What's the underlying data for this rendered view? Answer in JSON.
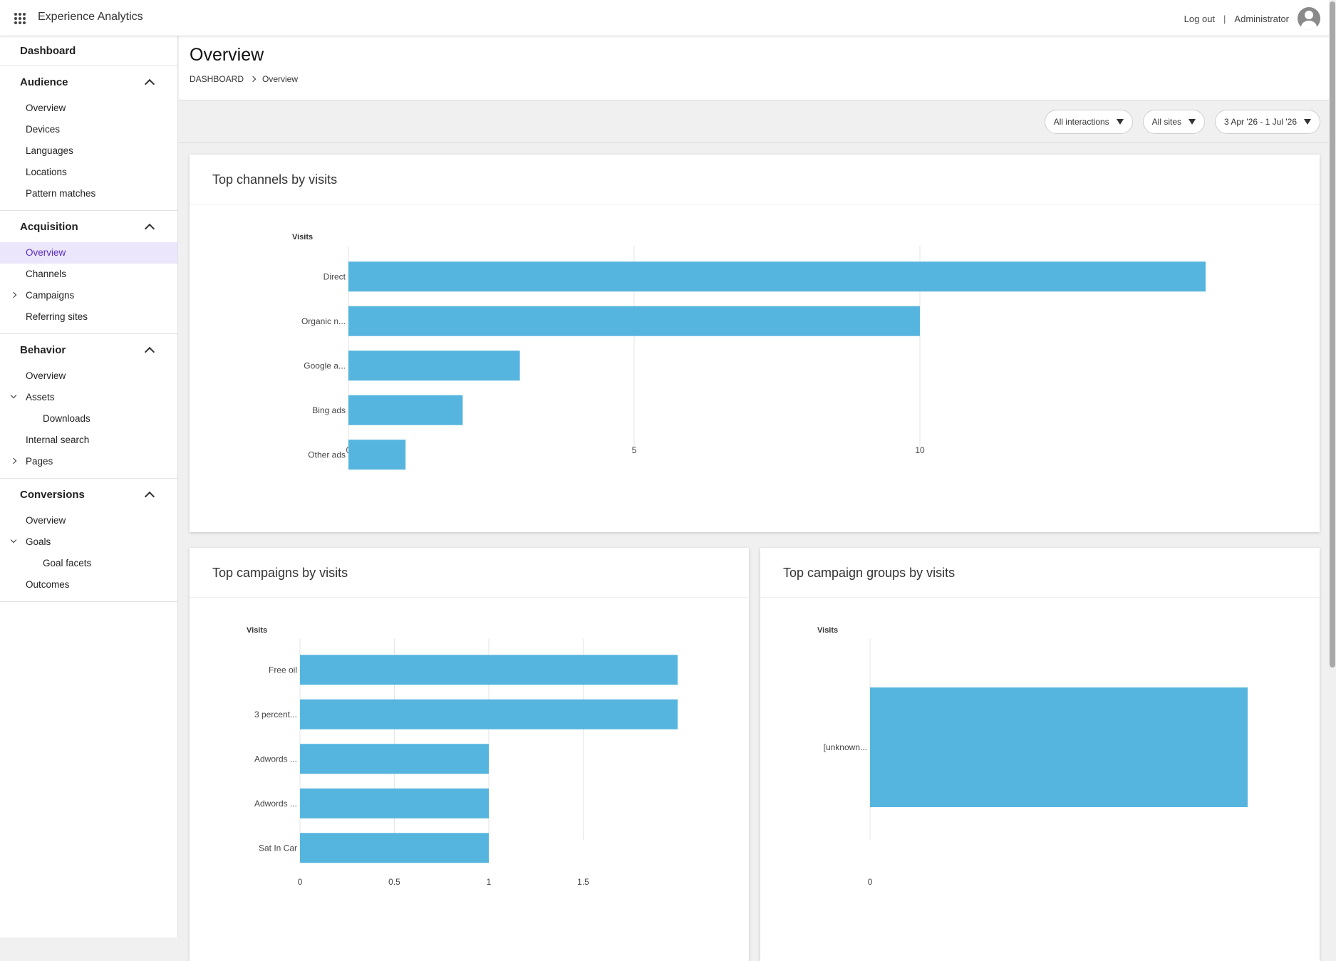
{
  "app": {
    "title": "Experience Analytics"
  },
  "header": {
    "logout": "Log out",
    "separator": "|",
    "user": "Administrator"
  },
  "sidebar": {
    "dashboard": "Dashboard",
    "groups": [
      {
        "label": "Audience",
        "items": [
          {
            "label": "Overview"
          },
          {
            "label": "Devices"
          },
          {
            "label": "Languages"
          },
          {
            "label": "Locations"
          },
          {
            "label": "Pattern matches"
          }
        ]
      },
      {
        "label": "Acquisition",
        "items": [
          {
            "label": "Overview",
            "active": true
          },
          {
            "label": "Channels"
          },
          {
            "label": "Campaigns",
            "chevron": "right"
          },
          {
            "label": "Referring sites"
          }
        ]
      },
      {
        "label": "Behavior",
        "items": [
          {
            "label": "Overview"
          },
          {
            "label": "Assets",
            "chevron": "down"
          },
          {
            "label": "Downloads",
            "sub": true
          },
          {
            "label": "Internal search"
          },
          {
            "label": "Pages",
            "chevron": "right"
          }
        ]
      },
      {
        "label": "Conversions",
        "items": [
          {
            "label": "Overview"
          },
          {
            "label": "Goals",
            "chevron": "down"
          },
          {
            "label": "Goal facets",
            "sub": true
          },
          {
            "label": "Outcomes"
          }
        ]
      }
    ]
  },
  "page": {
    "title": "Overview",
    "breadcrumb": [
      "DASHBOARD",
      "Overview"
    ]
  },
  "filters": [
    {
      "label": "All interactions"
    },
    {
      "label": "All sites"
    },
    {
      "label": "3 Apr '26 - 1 Jul '26"
    }
  ],
  "colors": {
    "bar": "#56b5de",
    "active_nav_bg": "#ebe6fb",
    "active_nav_text": "#5a2ec3"
  },
  "chart_data": [
    {
      "id": "channels",
      "type": "bar",
      "orientation": "horizontal",
      "title": "Top channels by visits",
      "ylabel": "Visits",
      "categories": [
        "Direct",
        "Organic n...",
        "Google a...",
        "Bing ads",
        "Other ads"
      ],
      "values": [
        15,
        10,
        3,
        2,
        1
      ],
      "xlim": [
        0,
        15
      ],
      "xticks": [
        0,
        5,
        10
      ]
    },
    {
      "id": "campaigns",
      "type": "bar",
      "orientation": "horizontal",
      "title": "Top campaigns by visits",
      "ylabel": "Visits",
      "categories": [
        "Free oil",
        "3 percent...",
        "Adwords ...",
        "Adwords ...",
        "Sat In Car"
      ],
      "values": [
        2,
        2,
        1,
        1,
        1
      ],
      "xlim": [
        0,
        2
      ],
      "xticks": [
        0,
        0.5,
        1,
        1.5
      ]
    },
    {
      "id": "groups",
      "type": "bar",
      "orientation": "horizontal",
      "title": "Top campaign groups by visits",
      "ylabel": "Visits",
      "categories": [
        "[unknown..."
      ],
      "values": [
        1
      ],
      "xlim": [
        0,
        1
      ],
      "xticks": [
        0
      ]
    }
  ]
}
